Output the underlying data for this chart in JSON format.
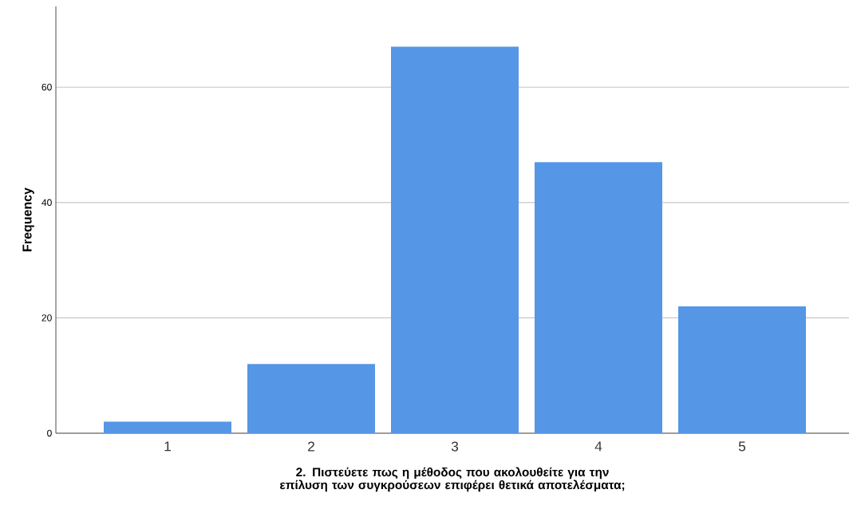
{
  "chart_data": {
    "type": "bar",
    "xlabel": "2. Πιστεύετε πως η μέθοδος που ακολουθείτε για την επίλυση των συγκρούσεων επιφέρει θετικά αποτελέσματα;",
    "ylabel": "Frequency",
    "categories": [
      "1",
      "2",
      "3",
      "4",
      "5"
    ],
    "values": [
      2,
      12,
      67,
      47,
      22
    ],
    "color": "#5596e6",
    "ylim": [
      0,
      74
    ],
    "yticks": [
      0,
      20,
      40,
      60
    ],
    "grid": "y"
  }
}
